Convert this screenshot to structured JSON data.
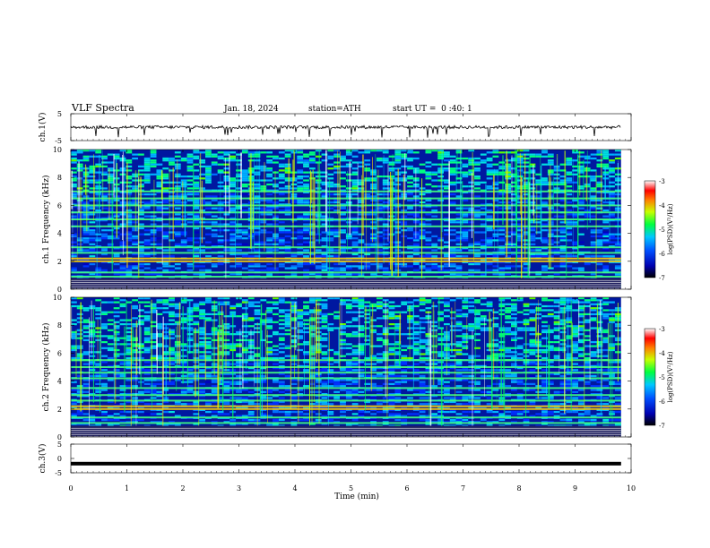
{
  "header": {
    "title": "VLF Spectra",
    "date": "Jan. 18, 2024",
    "station": "station=ATH",
    "start_ut": "start UT =  0 :40: 1"
  },
  "chart_data": [
    {
      "type": "line",
      "panel": "ch.1 waveform",
      "ylabel": "ch.1(V)",
      "ylim": [
        -5,
        5
      ],
      "yticks": [
        "5",
        "-5"
      ],
      "xlim": [
        0,
        9.82
      ],
      "baseline_value": 0,
      "color": "#000000"
    },
    {
      "type": "heatmap",
      "panel": "ch.1 spectrogram",
      "ylabel": "ch.1 Frequency (kHz)",
      "ylim": [
        0,
        10
      ],
      "yticks": [
        "0",
        "2",
        "4",
        "6",
        "8",
        "10"
      ],
      "xlim": [
        0,
        9.82
      ],
      "colorbar": {
        "label": "log(PSD)(V²/Hz)",
        "range": [
          -7,
          -3
        ],
        "ticks": [
          "-3",
          "-4",
          "-5",
          "-6",
          "-7"
        ]
      },
      "strong_bands_khz": [
        0.3,
        0.6,
        0.9,
        1.2,
        2.0,
        2.2,
        2.6,
        3.0,
        4.5,
        5.0,
        5.5,
        6.0,
        6.5,
        7.0
      ],
      "high_noise_band_khz": [
        7.0,
        10.0
      ]
    },
    {
      "type": "heatmap",
      "panel": "ch.2 spectrogram",
      "ylabel": "ch.2 Frequency (kHz)",
      "ylim": [
        0,
        10
      ],
      "yticks": [
        "0",
        "2",
        "4",
        "6",
        "8",
        "10"
      ],
      "xlim": [
        0,
        9.82
      ],
      "colorbar": {
        "label": "log(PSD)(V²/Hz)",
        "range": [
          -7,
          -3
        ],
        "ticks": [
          "-3",
          "-4",
          "-5",
          "-6",
          "-7"
        ]
      },
      "strong_bands_khz": [
        0.3,
        0.6,
        1.0,
        1.4,
        2.0,
        2.2,
        2.6,
        3.0,
        3.5,
        4.2,
        4.6,
        5.0,
        5.5
      ],
      "high_noise_band_khz": [
        5.5,
        10.0
      ]
    },
    {
      "type": "line",
      "panel": "ch.3 waveform",
      "ylabel": "ch.3(V)",
      "ylim": [
        -5,
        5
      ],
      "yticks": [
        "5",
        "0",
        "-5"
      ],
      "xlim": [
        0,
        9.82
      ],
      "baseline_value": -1.8,
      "color": "#000000"
    }
  ],
  "x_axis": {
    "label": "Time (min)",
    "range": [
      0,
      10
    ],
    "ticks": [
      "0",
      "1",
      "2",
      "3",
      "4",
      "5",
      "6",
      "7",
      "8",
      "9",
      "10"
    ]
  }
}
